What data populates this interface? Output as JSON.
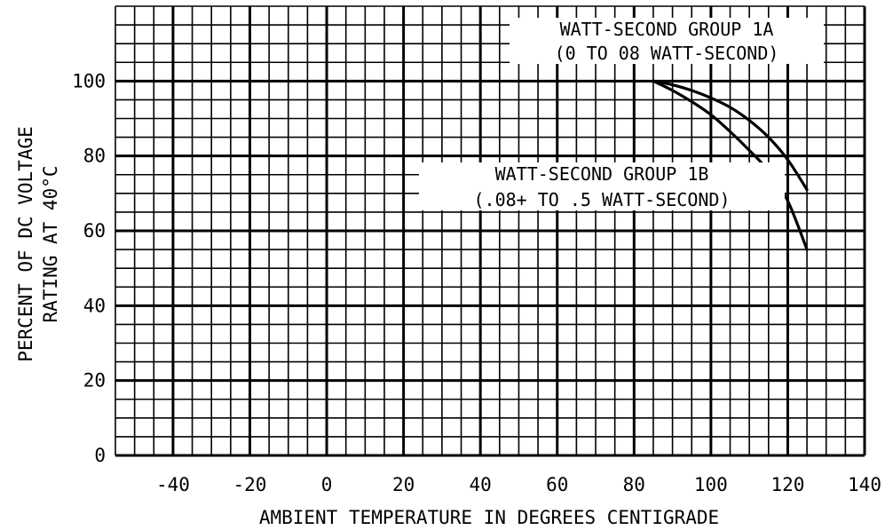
{
  "chart_data": {
    "type": "line",
    "title": "",
    "xlabel": "AMBIENT TEMPERATURE IN DEGREES CENTIGRADE",
    "ylabel_lines": [
      "PERCENT OF DC VOLTAGE",
      "RATING AT 40°C"
    ],
    "xlim": [
      -55,
      140
    ],
    "ylim": [
      0,
      120
    ],
    "x_ticks": [
      -40,
      -20,
      0,
      20,
      40,
      60,
      80,
      100,
      120,
      140
    ],
    "y_ticks": [
      0,
      20,
      40,
      60,
      80,
      100
    ],
    "x_minor_step": 5,
    "y_minor_step": 5,
    "grid": true,
    "series": [
      {
        "name": "WATT-SECOND GROUP 1A",
        "x": [
          85,
          90,
          95,
          100,
          105,
          110,
          115,
          120,
          125
        ],
        "y": [
          100,
          99,
          97.5,
          95.5,
          93,
          89.5,
          85,
          79,
          71
        ]
      },
      {
        "name": "WATT-SECOND GROUP 1B",
        "x": [
          85,
          90,
          95,
          100,
          105,
          110,
          115,
          120,
          125
        ],
        "y": [
          100,
          97.5,
          94.5,
          91,
          86.5,
          81.5,
          76,
          68,
          55
        ]
      }
    ],
    "annotations": [
      {
        "lines": [
          "WATT-SECOND GROUP 1A",
          "(0 TO 08 WATT-SECOND)"
        ]
      },
      {
        "lines": [
          "WATT-SECOND GROUP 1B",
          "(.08+ TO .5 WATT-SECOND)"
        ]
      }
    ]
  }
}
